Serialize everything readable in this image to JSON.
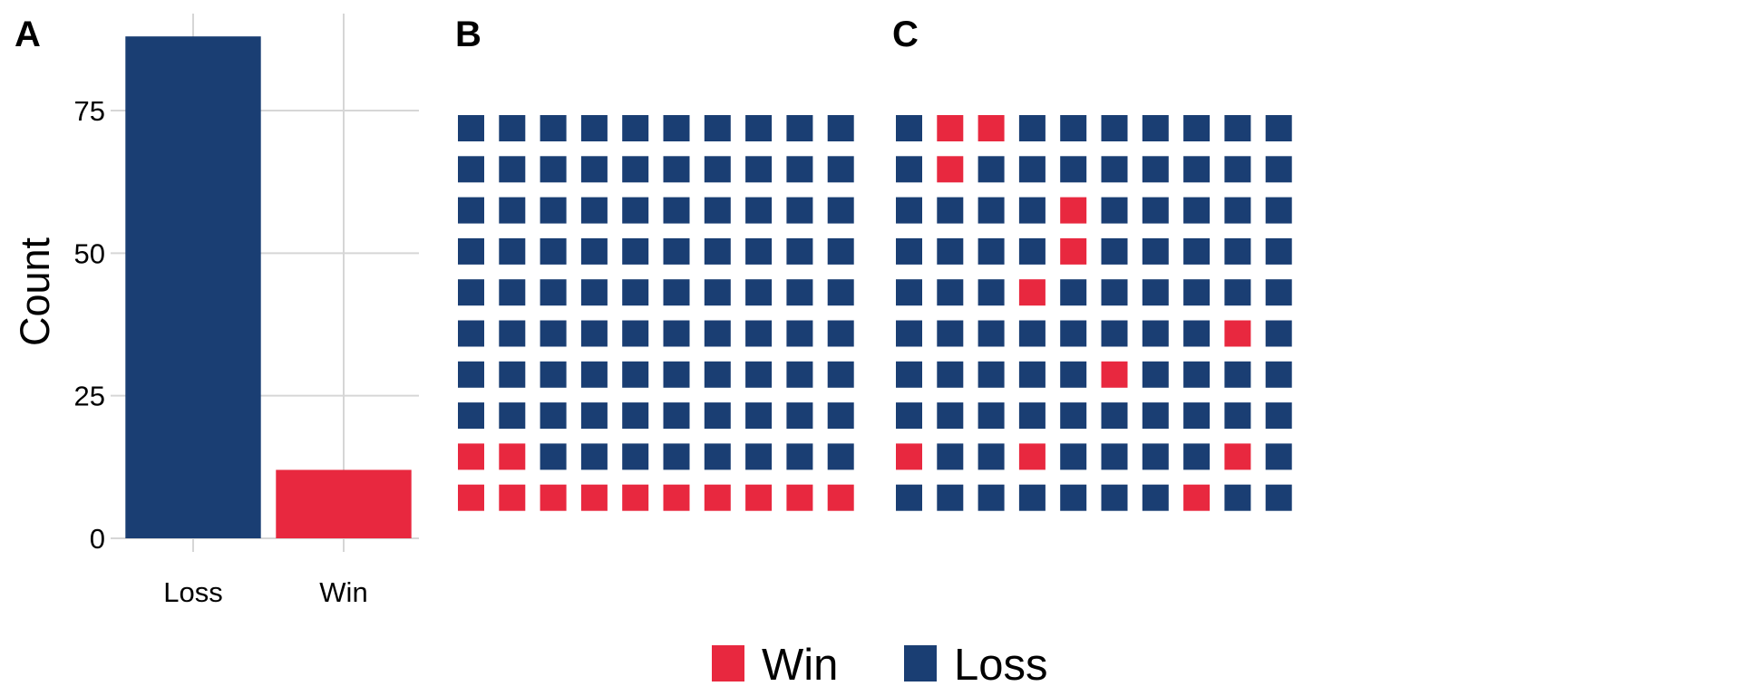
{
  "colors": {
    "win": "#e8283f",
    "loss": "#1a3e73",
    "grid": "#d6d6d6",
    "background": "#ffffff"
  },
  "legend": {
    "placement": "bottom-center",
    "items": [
      {
        "label": "Win",
        "color_key": "win"
      },
      {
        "label": "Loss",
        "color_key": "loss"
      }
    ]
  },
  "chart_data": [
    {
      "panel": "A",
      "type": "bar",
      "categories": [
        "Loss",
        "Win"
      ],
      "values": [
        88,
        12
      ],
      "title": "",
      "xlabel": "",
      "ylabel": "Count",
      "ylim": [
        0,
        92
      ],
      "yticks": [
        0,
        25,
        50,
        75
      ],
      "grid": true,
      "bar_color_keys": [
        "loss",
        "win"
      ]
    },
    {
      "panel": "B",
      "type": "heatmap",
      "subtype": "waffle",
      "rows": 10,
      "cols": 10,
      "legend": [
        "Win",
        "Loss"
      ],
      "counts": {
        "Win": 12,
        "Loss": 88
      },
      "grid_values": [
        [
          "Loss",
          "Loss",
          "Loss",
          "Loss",
          "Loss",
          "Loss",
          "Loss",
          "Loss",
          "Loss",
          "Loss"
        ],
        [
          "Loss",
          "Loss",
          "Loss",
          "Loss",
          "Loss",
          "Loss",
          "Loss",
          "Loss",
          "Loss",
          "Loss"
        ],
        [
          "Loss",
          "Loss",
          "Loss",
          "Loss",
          "Loss",
          "Loss",
          "Loss",
          "Loss",
          "Loss",
          "Loss"
        ],
        [
          "Loss",
          "Loss",
          "Loss",
          "Loss",
          "Loss",
          "Loss",
          "Loss",
          "Loss",
          "Loss",
          "Loss"
        ],
        [
          "Loss",
          "Loss",
          "Loss",
          "Loss",
          "Loss",
          "Loss",
          "Loss",
          "Loss",
          "Loss",
          "Loss"
        ],
        [
          "Loss",
          "Loss",
          "Loss",
          "Loss",
          "Loss",
          "Loss",
          "Loss",
          "Loss",
          "Loss",
          "Loss"
        ],
        [
          "Loss",
          "Loss",
          "Loss",
          "Loss",
          "Loss",
          "Loss",
          "Loss",
          "Loss",
          "Loss",
          "Loss"
        ],
        [
          "Loss",
          "Loss",
          "Loss",
          "Loss",
          "Loss",
          "Loss",
          "Loss",
          "Loss",
          "Loss",
          "Loss"
        ],
        [
          "Win",
          "Win",
          "Loss",
          "Loss",
          "Loss",
          "Loss",
          "Loss",
          "Loss",
          "Loss",
          "Loss"
        ],
        [
          "Win",
          "Win",
          "Win",
          "Win",
          "Win",
          "Win",
          "Win",
          "Win",
          "Win",
          "Win"
        ]
      ]
    },
    {
      "panel": "C",
      "type": "heatmap",
      "subtype": "waffle",
      "rows": 10,
      "cols": 10,
      "legend": [
        "Win",
        "Loss"
      ],
      "counts": {
        "Win": 12,
        "Loss": 88
      },
      "grid_values": [
        [
          "Loss",
          "Win",
          "Win",
          "Loss",
          "Loss",
          "Loss",
          "Loss",
          "Loss",
          "Loss",
          "Loss"
        ],
        [
          "Loss",
          "Win",
          "Loss",
          "Loss",
          "Loss",
          "Loss",
          "Loss",
          "Loss",
          "Loss",
          "Loss"
        ],
        [
          "Loss",
          "Loss",
          "Loss",
          "Loss",
          "Win",
          "Loss",
          "Loss",
          "Loss",
          "Loss",
          "Loss"
        ],
        [
          "Loss",
          "Loss",
          "Loss",
          "Loss",
          "Win",
          "Loss",
          "Loss",
          "Loss",
          "Loss",
          "Loss"
        ],
        [
          "Loss",
          "Loss",
          "Loss",
          "Win",
          "Loss",
          "Loss",
          "Loss",
          "Loss",
          "Loss",
          "Loss"
        ],
        [
          "Loss",
          "Loss",
          "Loss",
          "Loss",
          "Loss",
          "Loss",
          "Loss",
          "Loss",
          "Win",
          "Loss"
        ],
        [
          "Loss",
          "Loss",
          "Loss",
          "Loss",
          "Loss",
          "Win",
          "Loss",
          "Loss",
          "Loss",
          "Loss"
        ],
        [
          "Loss",
          "Loss",
          "Loss",
          "Loss",
          "Loss",
          "Loss",
          "Loss",
          "Loss",
          "Loss",
          "Loss"
        ],
        [
          "Win",
          "Loss",
          "Loss",
          "Win",
          "Loss",
          "Loss",
          "Loss",
          "Loss",
          "Win",
          "Loss"
        ],
        [
          "Loss",
          "Loss",
          "Loss",
          "Loss",
          "Loss",
          "Loss",
          "Loss",
          "Win",
          "Loss",
          "Loss"
        ]
      ]
    }
  ]
}
